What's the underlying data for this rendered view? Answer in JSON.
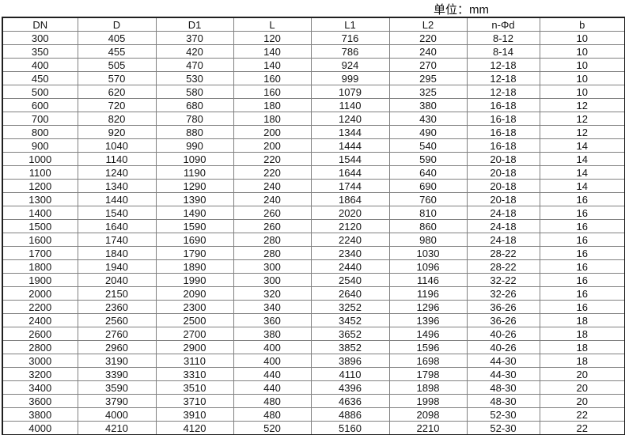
{
  "unit_label": "单位：mm",
  "colors": {
    "background": "#ffffff",
    "text": "#141414",
    "border_outer": "#1f1f1f",
    "border_inner": "#808080"
  },
  "table": {
    "columns": [
      "DN",
      "D",
      "D1",
      "L",
      "L1",
      "L2",
      "n-Φd",
      "b"
    ],
    "rows": [
      [
        "300",
        "405",
        "370",
        "120",
        "716",
        "220",
        "8-12",
        "10"
      ],
      [
        "350",
        "455",
        "420",
        "140",
        "786",
        "240",
        "8-14",
        "10"
      ],
      [
        "400",
        "505",
        "470",
        "140",
        "924",
        "270",
        "12-18",
        "10"
      ],
      [
        "450",
        "570",
        "530",
        "160",
        "999",
        "295",
        "12-18",
        "10"
      ],
      [
        "500",
        "620",
        "580",
        "160",
        "1079",
        "325",
        "12-18",
        "10"
      ],
      [
        "600",
        "720",
        "680",
        "180",
        "1140",
        "380",
        "16-18",
        "12"
      ],
      [
        "700",
        "820",
        "780",
        "180",
        "1240",
        "430",
        "16-18",
        "12"
      ],
      [
        "800",
        "920",
        "880",
        "200",
        "1344",
        "490",
        "16-18",
        "12"
      ],
      [
        "900",
        "1040",
        "990",
        "200",
        "1444",
        "540",
        "16-18",
        "14"
      ],
      [
        "1000",
        "1140",
        "1090",
        "220",
        "1544",
        "590",
        "20-18",
        "14"
      ],
      [
        "1100",
        "1240",
        "1190",
        "220",
        "1644",
        "640",
        "20-18",
        "14"
      ],
      [
        "1200",
        "1340",
        "1290",
        "240",
        "1744",
        "690",
        "20-18",
        "14"
      ],
      [
        "1300",
        "1440",
        "1390",
        "240",
        "1864",
        "760",
        "20-18",
        "16"
      ],
      [
        "1400",
        "1540",
        "1490",
        "260",
        "2020",
        "810",
        "24-18",
        "16"
      ],
      [
        "1500",
        "1640",
        "1590",
        "260",
        "2120",
        "860",
        "24-18",
        "16"
      ],
      [
        "1600",
        "1740",
        "1690",
        "280",
        "2240",
        "980",
        "24-18",
        "16"
      ],
      [
        "1700",
        "1840",
        "1790",
        "280",
        "2340",
        "1030",
        "28-22",
        "16"
      ],
      [
        "1800",
        "1940",
        "1890",
        "300",
        "2440",
        "1096",
        "28-22",
        "16"
      ],
      [
        "1900",
        "2040",
        "1990",
        "300",
        "2540",
        "1146",
        "32-22",
        "16"
      ],
      [
        "2000",
        "2150",
        "2090",
        "320",
        "2640",
        "1196",
        "32-26",
        "16"
      ],
      [
        "2200",
        "2360",
        "2300",
        "340",
        "3252",
        "1296",
        "36-26",
        "16"
      ],
      [
        "2400",
        "2560",
        "2500",
        "360",
        "3452",
        "1396",
        "36-26",
        "18"
      ],
      [
        "2600",
        "2760",
        "2700",
        "380",
        "3652",
        "1496",
        "40-26",
        "18"
      ],
      [
        "2800",
        "2960",
        "2900",
        "400",
        "3852",
        "1596",
        "40-26",
        "18"
      ],
      [
        "3000",
        "3190",
        "3110",
        "400",
        "3896",
        "1698",
        "44-30",
        "18"
      ],
      [
        "3200",
        "3390",
        "3310",
        "440",
        "4110",
        "1798",
        "44-30",
        "20"
      ],
      [
        "3400",
        "3590",
        "3510",
        "440",
        "4396",
        "1898",
        "48-30",
        "20"
      ],
      [
        "3600",
        "3790",
        "3710",
        "480",
        "4636",
        "1998",
        "48-30",
        "20"
      ],
      [
        "3800",
        "4000",
        "3910",
        "480",
        "4886",
        "2098",
        "52-30",
        "22"
      ],
      [
        "4000",
        "4210",
        "4120",
        "520",
        "5160",
        "2210",
        "52-30",
        "22"
      ]
    ]
  }
}
